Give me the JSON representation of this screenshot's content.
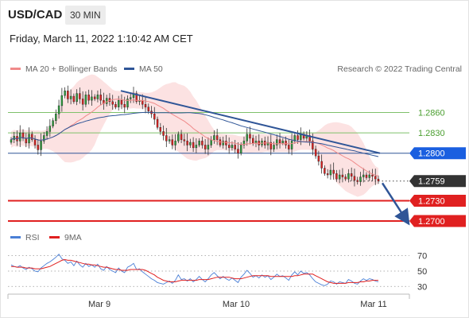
{
  "header": {
    "pair": "USD/CAD",
    "timeframe": "30 MIN"
  },
  "datetime": "Friday, March 11, 2022 1:10:42 AM CET",
  "legend_main": [
    {
      "label": "MA 20 + Bollinger Bands",
      "color": "#f08a8a"
    },
    {
      "label": "MA 50",
      "color": "#2f5597"
    }
  ],
  "copyright": "Research © 2022 Trading Central",
  "legend_rsi": [
    {
      "label": "RSI",
      "color": "#4a7fd6"
    },
    {
      "label": "9MA",
      "color": "#e02020"
    }
  ],
  "chart_data": [
    {
      "type": "candlestick",
      "instrument": "USD/CAD",
      "timeframe": "30 MIN",
      "x_ticks": [
        "Mar 9",
        "Mar 10",
        "Mar 11"
      ],
      "ylim": [
        1.2686,
        1.2918
      ],
      "price_levels": [
        {
          "value": 1.286,
          "label": "1.2860",
          "style": "green-line"
        },
        {
          "value": 1.283,
          "label": "1.2830",
          "style": "green-line"
        },
        {
          "value": 1.28,
          "label": "1.2800",
          "style": "blue-line"
        },
        {
          "value": 1.2759,
          "label": "1.2759",
          "style": "dotted-current"
        },
        {
          "value": 1.273,
          "label": "1.2730",
          "style": "red-line"
        },
        {
          "value": 1.27,
          "label": "1.2700",
          "style": "red-line"
        }
      ],
      "current_price": 1.2759,
      "trendline": {
        "from": {
          "x": "Mar 9",
          "y": 1.2892
        },
        "to": {
          "x": "Mar 11",
          "y": 1.28
        }
      },
      "forecast_arrow": {
        "from": 1.2756,
        "to": 1.27
      },
      "close_path": [
        1.282,
        1.2825,
        1.2818,
        1.283,
        1.2822,
        1.2815,
        1.2828,
        1.282,
        1.2812,
        1.2805,
        1.2818,
        1.2826,
        1.2832,
        1.284,
        1.2848,
        1.2858,
        1.287,
        1.2885,
        1.2892,
        1.288,
        1.2884,
        1.2876,
        1.2888,
        1.288,
        1.2872,
        1.2886,
        1.2878,
        1.2883,
        1.288,
        1.2886,
        1.2878,
        1.2873,
        1.2881,
        1.2876,
        1.2872,
        1.2868,
        1.2878,
        1.2872,
        1.2868,
        1.288,
        1.2882,
        1.2888,
        1.2876,
        1.2878,
        1.2872,
        1.2868,
        1.2862,
        1.2858,
        1.285,
        1.2838,
        1.2832,
        1.2826,
        1.2818,
        1.282,
        1.2812,
        1.2818,
        1.2828,
        1.282,
        1.2818,
        1.2812,
        1.2816,
        1.2808,
        1.2812,
        1.2818,
        1.2812,
        1.2806,
        1.2812,
        1.282,
        1.2826,
        1.282,
        1.2812,
        1.2818,
        1.2812,
        1.2808,
        1.2812,
        1.2806,
        1.28,
        1.2812,
        1.2818,
        1.2828,
        1.2822,
        1.2815,
        1.2818,
        1.2812,
        1.2818,
        1.2812,
        1.2816,
        1.2806,
        1.2812,
        1.282,
        1.2815,
        1.2818,
        1.2812,
        1.2806,
        1.2818,
        1.2826,
        1.282,
        1.2828,
        1.2822,
        1.2826,
        1.2818,
        1.2806,
        1.2796,
        1.2788,
        1.2778,
        1.277,
        1.2768,
        1.2775,
        1.277,
        1.2762,
        1.2768,
        1.2765,
        1.2762,
        1.277,
        1.2766,
        1.276,
        1.2758,
        1.2765,
        1.2768,
        1.2764,
        1.2768,
        1.2766,
        1.2762,
        1.2759
      ]
    },
    {
      "type": "line",
      "title": "RSI",
      "series": [
        {
          "name": "RSI",
          "values": [
            58,
            56,
            55,
            57,
            54,
            52,
            55,
            53,
            50,
            49,
            54,
            57,
            60,
            62,
            65,
            68,
            72,
            66,
            64,
            60,
            62,
            57,
            63,
            58,
            55,
            60,
            56,
            58,
            55,
            59,
            53,
            51,
            56,
            52,
            50,
            48,
            54,
            50,
            48,
            55,
            57,
            60,
            52,
            53,
            49,
            46,
            43,
            40,
            38,
            35,
            34,
            33,
            35,
            37,
            34,
            38,
            45,
            39,
            40,
            37,
            40,
            36,
            39,
            43,
            39,
            36,
            40,
            45,
            48,
            44,
            40,
            43,
            40,
            38,
            41,
            38,
            35,
            42,
            46,
            51,
            47,
            42,
            44,
            41,
            45,
            42,
            44,
            39,
            42,
            46,
            43,
            44,
            41,
            38,
            45,
            49,
            45,
            50,
            47,
            48,
            45,
            40,
            36,
            34,
            32,
            31,
            33,
            37,
            36,
            33,
            36,
            35,
            34,
            39,
            37,
            34,
            33,
            37,
            40,
            38,
            40,
            39,
            37,
            36
          ]
        },
        {
          "name": "9MA",
          "values": [
            56,
            56,
            55,
            55,
            55,
            54,
            54,
            54,
            53,
            53,
            53,
            54,
            55,
            56,
            58,
            60,
            62,
            64,
            65,
            64,
            64,
            63,
            62,
            61,
            60,
            59,
            59,
            58,
            58,
            57,
            56,
            55,
            55,
            54,
            53,
            52,
            52,
            51,
            51,
            51,
            52,
            52,
            52,
            52,
            52,
            51,
            49,
            47,
            45,
            42,
            40,
            38,
            37,
            36,
            36,
            36,
            37,
            38,
            38,
            38,
            38,
            38,
            38,
            39,
            39,
            39,
            39,
            40,
            41,
            42,
            42,
            42,
            42,
            42,
            41,
            40,
            40,
            40,
            41,
            42,
            43,
            44,
            44,
            44,
            44,
            44,
            44,
            43,
            43,
            43,
            43,
            43,
            43,
            43,
            43,
            44,
            44,
            45,
            46,
            46,
            46,
            46,
            44,
            42,
            40,
            38,
            36,
            35,
            34,
            34,
            34,
            34,
            34,
            35,
            35,
            35,
            35,
            36,
            36,
            37,
            37,
            38,
            38,
            38
          ]
        }
      ],
      "ylim": [
        22,
        80
      ],
      "y_ticks": [
        70,
        50,
        30
      ],
      "reference_levels": [
        70,
        50,
        30
      ]
    }
  ]
}
